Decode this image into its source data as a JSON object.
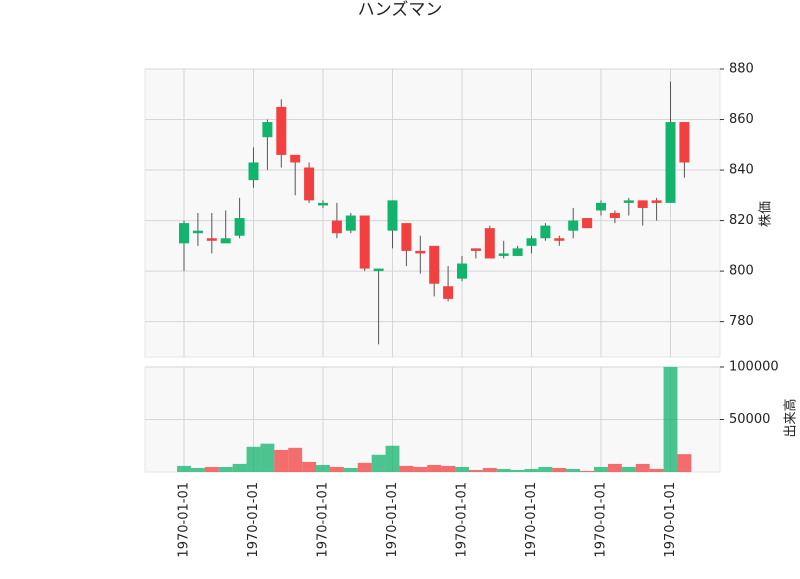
{
  "chart_data": {
    "type": "candlestick",
    "title": "ハンズマン",
    "ylabel": "株価",
    "volume_ylabel": "出来高",
    "categories": [
      "1970-01-01",
      null,
      null,
      null,
      null,
      "1970-01-01",
      null,
      null,
      null,
      null,
      "1970-01-01",
      null,
      null,
      null,
      null,
      "1970-01-01",
      null,
      null,
      null,
      null,
      "1970-01-01",
      null,
      null,
      null,
      null,
      "1970-01-01",
      null,
      null,
      null,
      null,
      "1970-01-01",
      null,
      null,
      null,
      null,
      "1970-01-01",
      null
    ],
    "open": [
      811,
      815,
      813,
      811,
      814,
      836,
      853,
      865,
      846,
      841,
      826,
      820,
      816,
      822,
      800,
      816,
      819,
      808,
      810,
      794,
      797,
      809,
      817,
      806,
      806,
      810,
      813,
      813,
      816,
      821,
      824,
      823,
      827,
      828,
      828,
      827,
      859
    ],
    "high": [
      820,
      823,
      823,
      824,
      829,
      849,
      860,
      868,
      846,
      843,
      828,
      827,
      823,
      822,
      801,
      828,
      819,
      814,
      810,
      802,
      806,
      809,
      818,
      812,
      810,
      814,
      819,
      814,
      825,
      821,
      828,
      824,
      829,
      828,
      829,
      875,
      859
    ],
    "low": [
      800,
      810,
      807,
      811,
      813,
      833,
      840,
      841,
      830,
      827,
      825,
      813,
      815,
      800,
      771,
      809,
      802,
      799,
      790,
      788,
      796,
      805,
      805,
      805,
      806,
      807,
      812,
      810,
      813,
      817,
      822,
      819,
      822,
      818,
      820,
      827,
      837
    ],
    "close": [
      819,
      816,
      812,
      813,
      821,
      843,
      859,
      846,
      843,
      828,
      827,
      815,
      822,
      801,
      801,
      828,
      808,
      807,
      795,
      789,
      803,
      808,
      805,
      807,
      809,
      813,
      818,
      812,
      820,
      817,
      827,
      821,
      828,
      825,
      827,
      859,
      843
    ],
    "volume": [
      5800,
      3800,
      4800,
      4800,
      7700,
      24000,
      27000,
      21000,
      23000,
      9600,
      6700,
      4800,
      3800,
      8700,
      16400,
      25000,
      5800,
      4800,
      6700,
      5800,
      4800,
      1900,
      3800,
      2900,
      1900,
      2900,
      4800,
      3800,
      2900,
      1000,
      4800,
      7700,
      4800,
      7700,
      2900,
      100000,
      17000
    ],
    "up_color": "#12b36c",
    "down_color": "#f23f3f",
    "ylim": [
      766,
      880
    ],
    "yticks": [
      780,
      800,
      820,
      840,
      860,
      880
    ],
    "volume_ylim": [
      0,
      100000
    ],
    "volume_yticks": [
      50000,
      100000
    ],
    "grid": true
  }
}
